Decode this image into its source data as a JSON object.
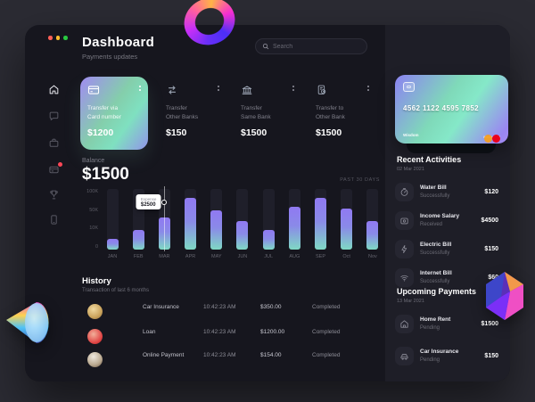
{
  "app": {
    "title": "Dashboard",
    "subtitle": "Payments updates"
  },
  "window_controls": {
    "dots": [
      "#ff5f57",
      "#febc2e",
      "#28c840"
    ]
  },
  "search": {
    "placeholder": "Search"
  },
  "topbar": {
    "icons": [
      "message-icon",
      "notification-bell-icon",
      "chevron-down-icon"
    ],
    "notify_color": "#ffb300",
    "online_color": "#2ed573"
  },
  "sidebar": {
    "items": [
      {
        "id": "home",
        "icon": "home-icon",
        "active": true,
        "badge": false
      },
      {
        "id": "messages",
        "icon": "chat-icon",
        "active": false,
        "badge": false
      },
      {
        "id": "work",
        "icon": "briefcase-icon",
        "active": false,
        "badge": false
      },
      {
        "id": "cards",
        "icon": "wallet-card-icon",
        "active": false,
        "badge": true
      },
      {
        "id": "rewards",
        "icon": "trophy-icon",
        "active": false,
        "badge": false
      },
      {
        "id": "device",
        "icon": "mobile-icon",
        "active": false,
        "badge": false
      }
    ],
    "badge_color": "#ff4757"
  },
  "transfer_cards": [
    {
      "label_line1": "Transfer via",
      "label_line2": "Card number",
      "amount": "$1200",
      "icon": "credit-card-icon",
      "highlight": true
    },
    {
      "label_line1": "Transfer",
      "label_line2": "Other Banks",
      "amount": "$150",
      "icon": "transfer-arrows-icon",
      "highlight": false
    },
    {
      "label_line1": "Transfer",
      "label_line2": "Same Bank",
      "amount": "$1500",
      "icon": "bank-icon",
      "highlight": false
    },
    {
      "label_line1": "Transfer to",
      "label_line2": "Other Bank",
      "amount": "$1500",
      "icon": "receipt-clock-icon",
      "highlight": false
    }
  ],
  "balance": {
    "label": "Balance",
    "amount": "$1500",
    "period": "PAST 30 DAYS"
  },
  "chart_data": {
    "type": "bar",
    "title": "Balance – past 30 days",
    "categories": [
      "JAN",
      "FEB",
      "MAR",
      "APR",
      "MAY",
      "JUN",
      "JUL",
      "AUG",
      "SEP",
      "Oct",
      "Nov"
    ],
    "values": [
      17,
      32,
      53,
      86,
      64,
      47,
      32,
      70,
      85,
      67,
      47
    ],
    "ylim": [
      0,
      100
    ],
    "ytick_labels": [
      "100K",
      "50K",
      "10K",
      "0"
    ],
    "grid": false,
    "legend": false,
    "bar_gradient": [
      "#9079f2",
      "#7fd9c4"
    ],
    "tooltip": {
      "index": 2,
      "month": "MAR",
      "label": "Expense",
      "value": "$2500"
    }
  },
  "history": {
    "title": "History",
    "subtitle": "Transaction of last 6 months",
    "rows": [
      {
        "name": "Car Insurance",
        "time": "10:42:23 AM",
        "amount": "$350.00",
        "status": "Completed"
      },
      {
        "name": "Loan",
        "time": "10:42:23 AM",
        "amount": "$1200.00",
        "status": "Completed"
      },
      {
        "name": "Online Payment",
        "time": "10:42:23 AM",
        "amount": "$154.00",
        "status": "Completed"
      }
    ]
  },
  "credit_card": {
    "number": "4562 1122 4595 7852",
    "holder": "Wisdom",
    "brand": "Mastercard"
  },
  "recent_activities": {
    "title": "Recent Activities",
    "date": "02 Mar 2021",
    "items": [
      {
        "name": "Water Bill",
        "status": "Successfully",
        "amount": "$120",
        "icon": "gauge-icon"
      },
      {
        "name": "Income Salary",
        "status": "Received",
        "amount": "$4500",
        "icon": "wallet-icon"
      },
      {
        "name": "Electric Bill",
        "status": "Successfully",
        "amount": "$150",
        "icon": "lightning-icon"
      },
      {
        "name": "Internet Bill",
        "status": "Successfully",
        "amount": "$60",
        "icon": "wifi-icon"
      }
    ]
  },
  "upcoming_payments": {
    "title": "Upcoming Payments",
    "date": "13 Mar 2021",
    "items": [
      {
        "name": "Home Rent",
        "status": "Pending",
        "amount": "$1500",
        "icon": "home-icon"
      },
      {
        "name": "Car Insurance",
        "status": "Pending",
        "amount": "$150",
        "icon": "car-icon"
      }
    ]
  },
  "colors": {
    "accent_purple": "#9079f2",
    "accent_teal": "#7fd9c4",
    "badge_red": "#ff4757",
    "notify_yellow": "#ffb300",
    "online_green": "#2ed573"
  }
}
